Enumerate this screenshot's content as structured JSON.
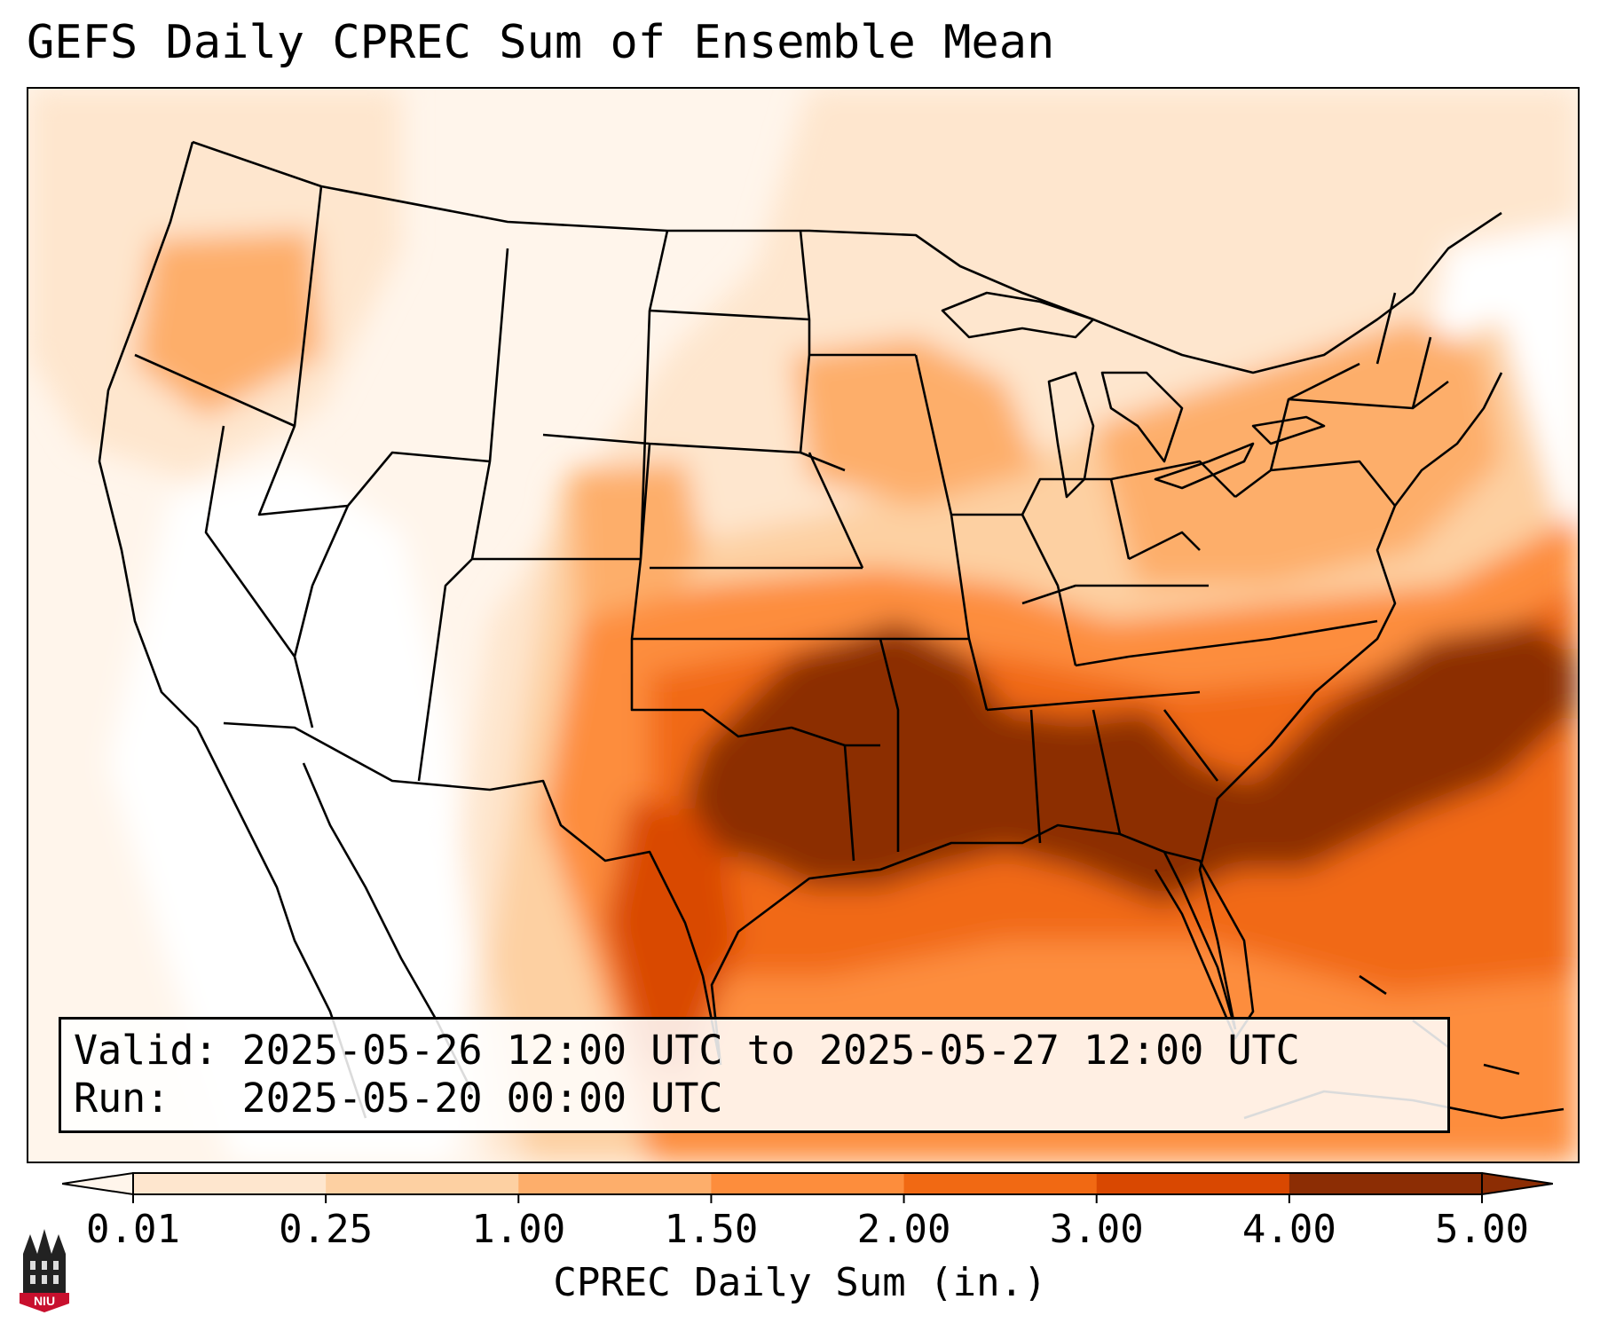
{
  "title": "GEFS Daily CPREC Sum of Ensemble Mean",
  "info": {
    "valid_label": "Valid:",
    "valid_value": "2025-05-26 12:00 UTC to 2025-05-27 12:00 UTC",
    "run_label": "Run:",
    "run_value": "2025-05-20 00:00 UTC"
  },
  "colorbar": {
    "label": "CPREC Daily Sum (in.)",
    "ticks": [
      "0.01",
      "0.25",
      "1.00",
      "1.50",
      "2.00",
      "3.00",
      "4.00",
      "5.00"
    ],
    "colors": [
      "#fff5eb",
      "#fee6ce",
      "#fdd0a2",
      "#fdae6b",
      "#fd8d3c",
      "#f16913",
      "#d94801",
      "#8c2d04"
    ],
    "extend": "both"
  },
  "logo": {
    "text": "NIU",
    "icon": "niu-castle-icon"
  },
  "map": {
    "region": "Contiguous United States",
    "palette": {
      "low": "#fff5eb",
      "l1": "#fee6ce",
      "l2": "#fdd0a2",
      "l3": "#fdae6b",
      "l4": "#fd8d3c",
      "l5": "#f16913",
      "l6": "#d94801",
      "max": "#8c2d04"
    }
  }
}
